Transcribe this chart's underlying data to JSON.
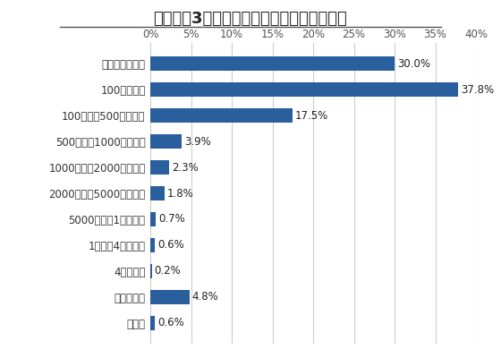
{
  "title": "直近過去3基の情報セキュリティ対策投資額",
  "categories": [
    "無回答",
    "わからない",
    "4億円以上",
    "1億円〜4億円未満",
    "5000万円〜1億円未満",
    "2000万円〜5000万円未満",
    "1000万円〜2000万円未満",
    "500万円〜1000万円未満",
    "100万円〜500万円未満",
    "100万円未満",
    "投資していない"
  ],
  "values": [
    0.6,
    4.8,
    0.2,
    0.6,
    0.7,
    1.8,
    2.3,
    3.9,
    17.5,
    37.8,
    30.0
  ],
  "labels": [
    "0.6%",
    "4.8%",
    "0.2%",
    "0.6%",
    "0.7%",
    "1.8%",
    "2.3%",
    "3.9%",
    "17.5%",
    "37.8%",
    "30.0%"
  ],
  "bar_color": "#2a5f9e",
  "xlim": [
    0,
    40
  ],
  "xticks": [
    0,
    5,
    10,
    15,
    20,
    25,
    30,
    35,
    40
  ],
  "xtick_labels": [
    "0%",
    "5%",
    "10%",
    "15%",
    "20%",
    "25%",
    "30%",
    "35%",
    "40%"
  ],
  "background_color": "#ffffff",
  "grid_color": "#cccccc",
  "title_fontsize": 13,
  "label_fontsize": 8.5,
  "tick_fontsize": 8.5,
  "bar_label_fontsize": 8.5
}
